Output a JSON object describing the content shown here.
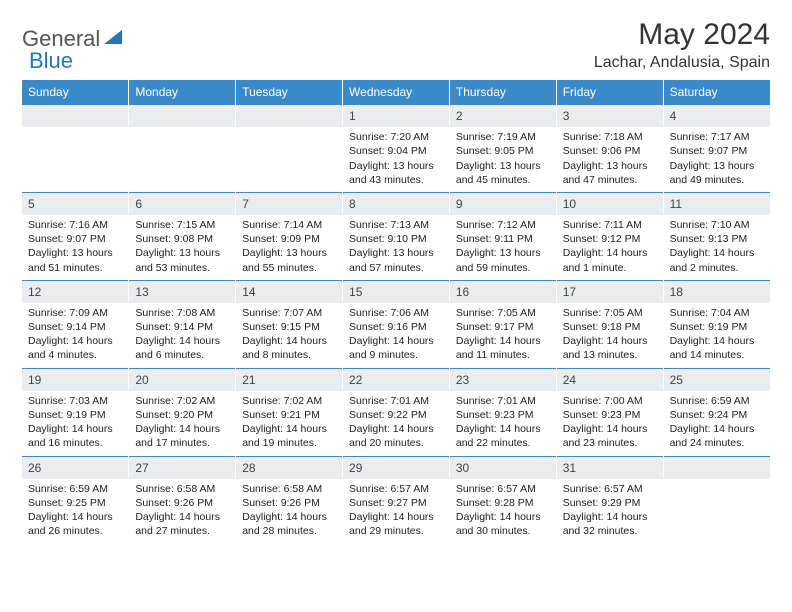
{
  "brand": {
    "word1": "General",
    "word2": "Blue"
  },
  "title": "May 2024",
  "location": "Lachar, Andalusia, Spain",
  "colors": {
    "header_bg": "#3a8ac9",
    "header_text": "#ffffff",
    "daynum_bg": "#e9edf0",
    "border_top": "#3a8ac9",
    "brand_blue": "#2874b8"
  },
  "weekdays": [
    "Sunday",
    "Monday",
    "Tuesday",
    "Wednesday",
    "Thursday",
    "Friday",
    "Saturday"
  ],
  "weeks": [
    [
      null,
      null,
      null,
      {
        "n": "1",
        "sr": "Sunrise: 7:20 AM",
        "ss": "Sunset: 9:04 PM",
        "dl": "Daylight: 13 hours and 43 minutes."
      },
      {
        "n": "2",
        "sr": "Sunrise: 7:19 AM",
        "ss": "Sunset: 9:05 PM",
        "dl": "Daylight: 13 hours and 45 minutes."
      },
      {
        "n": "3",
        "sr": "Sunrise: 7:18 AM",
        "ss": "Sunset: 9:06 PM",
        "dl": "Daylight: 13 hours and 47 minutes."
      },
      {
        "n": "4",
        "sr": "Sunrise: 7:17 AM",
        "ss": "Sunset: 9:07 PM",
        "dl": "Daylight: 13 hours and 49 minutes."
      }
    ],
    [
      {
        "n": "5",
        "sr": "Sunrise: 7:16 AM",
        "ss": "Sunset: 9:07 PM",
        "dl": "Daylight: 13 hours and 51 minutes."
      },
      {
        "n": "6",
        "sr": "Sunrise: 7:15 AM",
        "ss": "Sunset: 9:08 PM",
        "dl": "Daylight: 13 hours and 53 minutes."
      },
      {
        "n": "7",
        "sr": "Sunrise: 7:14 AM",
        "ss": "Sunset: 9:09 PM",
        "dl": "Daylight: 13 hours and 55 minutes."
      },
      {
        "n": "8",
        "sr": "Sunrise: 7:13 AM",
        "ss": "Sunset: 9:10 PM",
        "dl": "Daylight: 13 hours and 57 minutes."
      },
      {
        "n": "9",
        "sr": "Sunrise: 7:12 AM",
        "ss": "Sunset: 9:11 PM",
        "dl": "Daylight: 13 hours and 59 minutes."
      },
      {
        "n": "10",
        "sr": "Sunrise: 7:11 AM",
        "ss": "Sunset: 9:12 PM",
        "dl": "Daylight: 14 hours and 1 minute."
      },
      {
        "n": "11",
        "sr": "Sunrise: 7:10 AM",
        "ss": "Sunset: 9:13 PM",
        "dl": "Daylight: 14 hours and 2 minutes."
      }
    ],
    [
      {
        "n": "12",
        "sr": "Sunrise: 7:09 AM",
        "ss": "Sunset: 9:14 PM",
        "dl": "Daylight: 14 hours and 4 minutes."
      },
      {
        "n": "13",
        "sr": "Sunrise: 7:08 AM",
        "ss": "Sunset: 9:14 PM",
        "dl": "Daylight: 14 hours and 6 minutes."
      },
      {
        "n": "14",
        "sr": "Sunrise: 7:07 AM",
        "ss": "Sunset: 9:15 PM",
        "dl": "Daylight: 14 hours and 8 minutes."
      },
      {
        "n": "15",
        "sr": "Sunrise: 7:06 AM",
        "ss": "Sunset: 9:16 PM",
        "dl": "Daylight: 14 hours and 9 minutes."
      },
      {
        "n": "16",
        "sr": "Sunrise: 7:05 AM",
        "ss": "Sunset: 9:17 PM",
        "dl": "Daylight: 14 hours and 11 minutes."
      },
      {
        "n": "17",
        "sr": "Sunrise: 7:05 AM",
        "ss": "Sunset: 9:18 PM",
        "dl": "Daylight: 14 hours and 13 minutes."
      },
      {
        "n": "18",
        "sr": "Sunrise: 7:04 AM",
        "ss": "Sunset: 9:19 PM",
        "dl": "Daylight: 14 hours and 14 minutes."
      }
    ],
    [
      {
        "n": "19",
        "sr": "Sunrise: 7:03 AM",
        "ss": "Sunset: 9:19 PM",
        "dl": "Daylight: 14 hours and 16 minutes."
      },
      {
        "n": "20",
        "sr": "Sunrise: 7:02 AM",
        "ss": "Sunset: 9:20 PM",
        "dl": "Daylight: 14 hours and 17 minutes."
      },
      {
        "n": "21",
        "sr": "Sunrise: 7:02 AM",
        "ss": "Sunset: 9:21 PM",
        "dl": "Daylight: 14 hours and 19 minutes."
      },
      {
        "n": "22",
        "sr": "Sunrise: 7:01 AM",
        "ss": "Sunset: 9:22 PM",
        "dl": "Daylight: 14 hours and 20 minutes."
      },
      {
        "n": "23",
        "sr": "Sunrise: 7:01 AM",
        "ss": "Sunset: 9:23 PM",
        "dl": "Daylight: 14 hours and 22 minutes."
      },
      {
        "n": "24",
        "sr": "Sunrise: 7:00 AM",
        "ss": "Sunset: 9:23 PM",
        "dl": "Daylight: 14 hours and 23 minutes."
      },
      {
        "n": "25",
        "sr": "Sunrise: 6:59 AM",
        "ss": "Sunset: 9:24 PM",
        "dl": "Daylight: 14 hours and 24 minutes."
      }
    ],
    [
      {
        "n": "26",
        "sr": "Sunrise: 6:59 AM",
        "ss": "Sunset: 9:25 PM",
        "dl": "Daylight: 14 hours and 26 minutes."
      },
      {
        "n": "27",
        "sr": "Sunrise: 6:58 AM",
        "ss": "Sunset: 9:26 PM",
        "dl": "Daylight: 14 hours and 27 minutes."
      },
      {
        "n": "28",
        "sr": "Sunrise: 6:58 AM",
        "ss": "Sunset: 9:26 PM",
        "dl": "Daylight: 14 hours and 28 minutes."
      },
      {
        "n": "29",
        "sr": "Sunrise: 6:57 AM",
        "ss": "Sunset: 9:27 PM",
        "dl": "Daylight: 14 hours and 29 minutes."
      },
      {
        "n": "30",
        "sr": "Sunrise: 6:57 AM",
        "ss": "Sunset: 9:28 PM",
        "dl": "Daylight: 14 hours and 30 minutes."
      },
      {
        "n": "31",
        "sr": "Sunrise: 6:57 AM",
        "ss": "Sunset: 9:29 PM",
        "dl": "Daylight: 14 hours and 32 minutes."
      },
      null
    ]
  ]
}
